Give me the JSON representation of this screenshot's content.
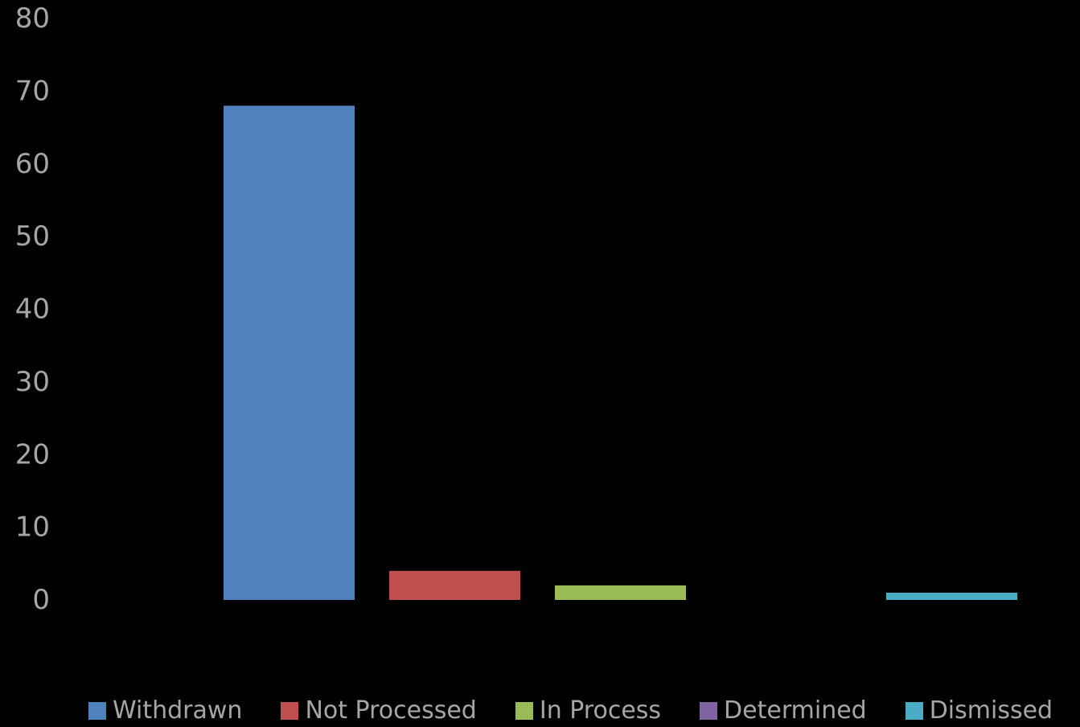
{
  "chart_data": {
    "type": "bar",
    "title": "",
    "xlabel": "",
    "ylabel": "",
    "ylim": [
      0,
      80
    ],
    "y_ticks": [
      "0",
      "10",
      "20",
      "30",
      "40",
      "50",
      "60",
      "70",
      "80"
    ],
    "grid": false,
    "legend_position": "bottom",
    "series": [
      {
        "name": "Withdrawn",
        "values": [
          68
        ],
        "color": "#4f81bd"
      },
      {
        "name": "Not Processed",
        "values": [
          4
        ],
        "color": "#c0504d"
      },
      {
        "name": "In Process",
        "values": [
          2
        ],
        "color": "#9bbb59"
      },
      {
        "name": "Determined",
        "values": [
          0
        ],
        "color": "#8064a2"
      },
      {
        "name": "Dismissed",
        "values": [
          1
        ],
        "color": "#4bacc6"
      }
    ]
  },
  "colors": {
    "background": "#000000",
    "text": "#a6a6a6"
  }
}
